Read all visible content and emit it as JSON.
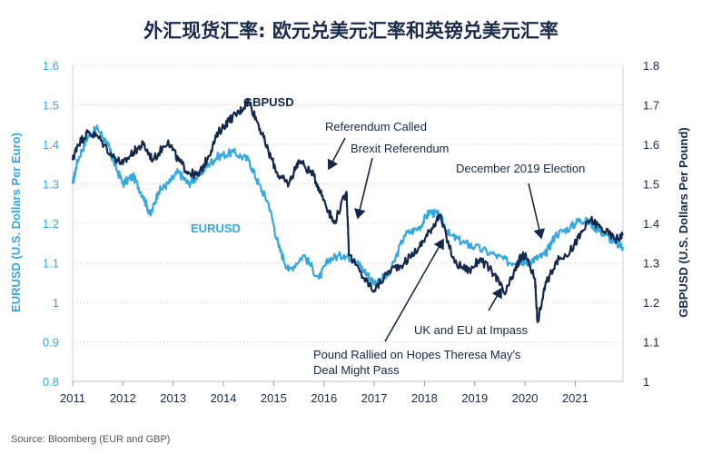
{
  "chart_data": {
    "type": "line",
    "title": "外汇现货汇率: 欧元兑美元汇率和英镑兑美元汇率",
    "source": "Source: Bloomberg (EUR and GBP)",
    "xlabel": "",
    "x_ticks": [
      "2011",
      "2012",
      "2013",
      "2014",
      "2015",
      "2016",
      "2017",
      "2018",
      "2019",
      "2020",
      "2021"
    ],
    "xlim": [
      2011.0,
      2021.95
    ],
    "ylabel_left": "EURUSD (U.S. Dollars Per Euro)",
    "ylabel_right": "GBPUSD (U.S. Dollars Per Pound)",
    "ylim_left": [
      0.8,
      1.6
    ],
    "ylim_right": [
      1.0,
      1.8
    ],
    "left_ticks": [
      "1.6",
      "1.5",
      "1.4",
      "1.3",
      "1.2",
      "1.1",
      "1",
      "0.9",
      "0.8"
    ],
    "right_ticks": [
      "1.8",
      "1.7",
      "1.6",
      "1.5",
      "1.4",
      "1.3",
      "1.2",
      "1.1",
      "1"
    ],
    "grid": "horizontal-dotted",
    "series": [
      {
        "name": "EURUSD",
        "axis": "left",
        "color": "#35a8e0",
        "x": [
          2011.0,
          2011.1,
          2011.3,
          2011.5,
          2011.7,
          2011.8,
          2012.0,
          2012.2,
          2012.4,
          2012.55,
          2012.7,
          2012.9,
          2013.1,
          2013.3,
          2013.5,
          2013.7,
          2013.9,
          2014.2,
          2014.5,
          2014.7,
          2014.9,
          2015.1,
          2015.3,
          2015.6,
          2015.9,
          2016.1,
          2016.4,
          2016.6,
          2016.8,
          2017.0,
          2017.3,
          2017.6,
          2017.9,
          2018.1,
          2018.3,
          2018.5,
          2018.8,
          2019.0,
          2019.4,
          2019.7,
          2019.9,
          2020.0,
          2020.2,
          2020.4,
          2020.6,
          2020.9,
          2021.1,
          2021.3,
          2021.5,
          2021.8,
          2021.95
        ],
        "values": [
          1.3,
          1.36,
          1.42,
          1.44,
          1.4,
          1.36,
          1.3,
          1.32,
          1.27,
          1.22,
          1.28,
          1.3,
          1.33,
          1.3,
          1.32,
          1.35,
          1.37,
          1.38,
          1.36,
          1.3,
          1.25,
          1.14,
          1.08,
          1.12,
          1.06,
          1.11,
          1.12,
          1.11,
          1.08,
          1.05,
          1.07,
          1.17,
          1.19,
          1.23,
          1.22,
          1.17,
          1.15,
          1.14,
          1.12,
          1.1,
          1.11,
          1.1,
          1.11,
          1.12,
          1.17,
          1.19,
          1.21,
          1.2,
          1.18,
          1.15,
          1.14
        ]
      },
      {
        "name": "GBPUSD",
        "axis": "right",
        "color": "#14284b",
        "x": [
          2011.0,
          2011.1,
          2011.3,
          2011.5,
          2011.8,
          2012.0,
          2012.2,
          2012.4,
          2012.6,
          2012.9,
          2013.1,
          2013.3,
          2013.5,
          2013.7,
          2013.9,
          2014.1,
          2014.3,
          2014.5,
          2014.7,
          2014.9,
          2015.1,
          2015.3,
          2015.5,
          2015.8,
          2016.0,
          2016.2,
          2016.45,
          2016.5,
          2016.8,
          2017.0,
          2017.3,
          2017.6,
          2017.9,
          2018.1,
          2018.3,
          2018.6,
          2018.9,
          2019.1,
          2019.4,
          2019.6,
          2019.8,
          2019.9,
          2020.0,
          2020.2,
          2020.25,
          2020.4,
          2020.6,
          2020.9,
          2021.1,
          2021.3,
          2021.5,
          2021.8,
          2021.95
        ],
        "values": [
          1.56,
          1.6,
          1.63,
          1.62,
          1.57,
          1.55,
          1.58,
          1.6,
          1.56,
          1.61,
          1.56,
          1.53,
          1.52,
          1.57,
          1.63,
          1.66,
          1.68,
          1.71,
          1.65,
          1.58,
          1.52,
          1.5,
          1.56,
          1.52,
          1.46,
          1.4,
          1.48,
          1.32,
          1.26,
          1.23,
          1.28,
          1.3,
          1.34,
          1.38,
          1.42,
          1.3,
          1.28,
          1.31,
          1.27,
          1.22,
          1.28,
          1.31,
          1.32,
          1.26,
          1.15,
          1.24,
          1.3,
          1.33,
          1.37,
          1.41,
          1.39,
          1.36,
          1.37
        ]
      }
    ],
    "annotations": [
      "GBPUSD",
      "Referendum Called",
      "Brexit Referendum",
      "December 2019 Election",
      "EURUSD",
      "UK and EU at Impass",
      "Pound Rallied on Hopes Theresa May's",
      "Deal Might Pass"
    ]
  }
}
